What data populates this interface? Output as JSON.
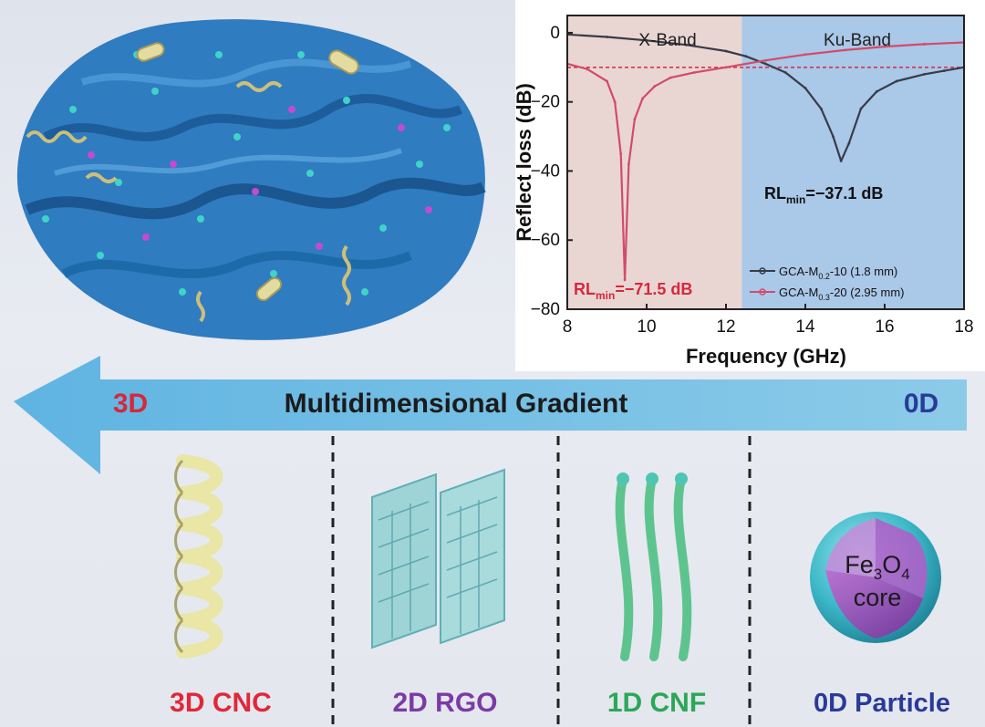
{
  "chart_data": {
    "type": "line",
    "xlabel": "Frequency (GHz)",
    "ylabel": "Reflect loss (dB)",
    "xlim": [
      8,
      18
    ],
    "ylim": [
      -80,
      5
    ],
    "xticks": [
      8,
      10,
      12,
      14,
      16,
      18
    ],
    "yticks": [
      0,
      -20,
      -40,
      -60,
      -80
    ],
    "grid": false,
    "legend_position": "bottom-right",
    "reference_line_y": -10,
    "bands": [
      {
        "label": "X-Band",
        "range": [
          8,
          12.4
        ],
        "color": "#e9d6d3"
      },
      {
        "label": "Ku-Band",
        "range": [
          12.4,
          18
        ],
        "color": "#aac8e8"
      }
    ],
    "series": [
      {
        "name_main": "GCA-M",
        "name_sub": "0.2",
        "name_tail": "-10 (1.8 mm)",
        "color": "#3a3a48",
        "x": [
          8,
          9,
          10,
          11,
          12,
          12.5,
          13,
          13.5,
          14,
          14.4,
          14.7,
          14.9,
          15.1,
          15.4,
          15.8,
          16.3,
          17,
          17.5,
          18
        ],
        "y": [
          -0.5,
          -1.2,
          -2.2,
          -3.5,
          -5.3,
          -6.8,
          -9,
          -11.5,
          -16,
          -22,
          -30,
          -37.1,
          -32,
          -22,
          -17,
          -14,
          -12,
          -11,
          -10
        ]
      },
      {
        "name_main": "GCA-M",
        "name_sub": "0.3",
        "name_tail": "-20 (2.95 mm)",
        "color": "#d24b6b",
        "x": [
          8,
          8.5,
          9.0,
          9.2,
          9.35,
          9.45,
          9.55,
          9.7,
          9.9,
          10.2,
          10.6,
          11.2,
          12,
          13,
          14,
          15,
          16,
          17,
          18
        ],
        "y": [
          -9,
          -10.5,
          -14,
          -20,
          -35,
          -71.5,
          -38,
          -25,
          -19,
          -15.5,
          -13,
          -11.5,
          -10,
          -8,
          -6.3,
          -5,
          -4,
          -3.3,
          -2.8
        ]
      }
    ],
    "annotations": [
      {
        "main": "RL",
        "sub": "min",
        "value": "=−71.5 dB"
      },
      {
        "main": "RL",
        "sub": "min",
        "value": "=−37.1 dB"
      }
    ]
  },
  "arrow": {
    "title": "Multidimensional Gradient",
    "left_label": "3D",
    "right_label": "0D"
  },
  "components": [
    {
      "label": "3D CNC",
      "color": "#e0283a"
    },
    {
      "label": "2D RGO",
      "color": "#7b3aa6"
    },
    {
      "label": "1D CNF",
      "color": "#2aa856"
    },
    {
      "label": "0D Particle",
      "color": "#2a3a98"
    }
  ],
  "particle": {
    "fe": "Fe",
    "sub1": "3",
    "o": "O",
    "sub2": "4",
    "core": "core"
  }
}
